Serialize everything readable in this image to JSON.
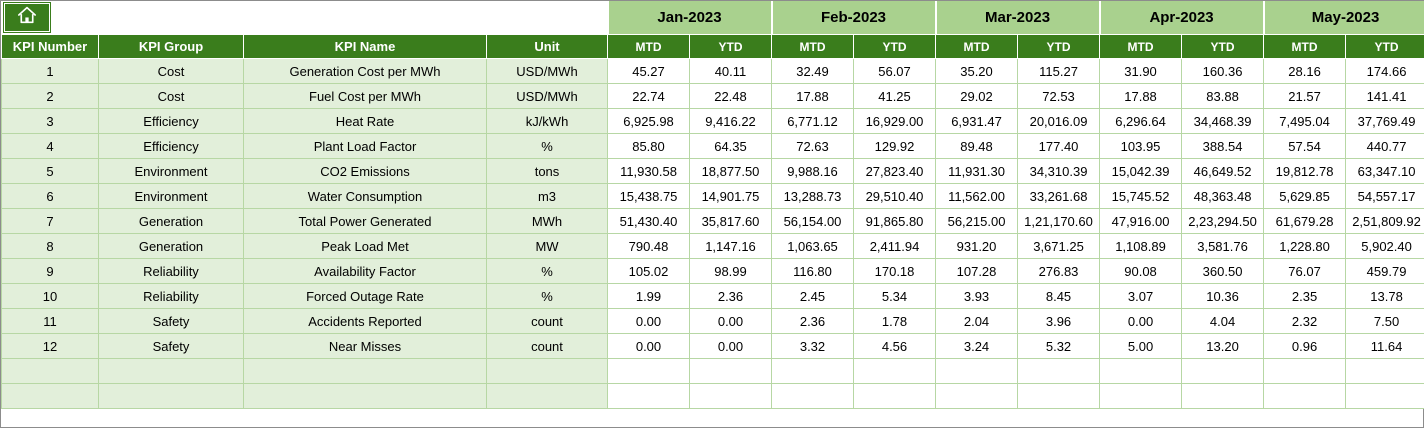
{
  "chart_data": {
    "type": "table",
    "corner": {
      "icon": "home-icon"
    },
    "month_groups": [
      "Jan-2023",
      "Feb-2023",
      "Mar-2023",
      "Apr-2023",
      "May-2023"
    ],
    "sub_columns": [
      "MTD",
      "YTD"
    ],
    "left_columns": [
      "KPI Number",
      "KPI Group",
      "KPI Name",
      "Unit"
    ],
    "rows": [
      {
        "kpi_number": "1",
        "kpi_group": "Cost",
        "kpi_name": "Generation Cost per MWh",
        "unit": "USD/MWh",
        "values": [
          "45.27",
          "40.11",
          "32.49",
          "56.07",
          "35.20",
          "115.27",
          "31.90",
          "160.36",
          "28.16",
          "174.66"
        ]
      },
      {
        "kpi_number": "2",
        "kpi_group": "Cost",
        "kpi_name": "Fuel Cost per MWh",
        "unit": "USD/MWh",
        "values": [
          "22.74",
          "22.48",
          "17.88",
          "41.25",
          "29.02",
          "72.53",
          "17.88",
          "83.88",
          "21.57",
          "141.41"
        ]
      },
      {
        "kpi_number": "3",
        "kpi_group": "Efficiency",
        "kpi_name": "Heat Rate",
        "unit": "kJ/kWh",
        "values": [
          "6,925.98",
          "9,416.22",
          "6,771.12",
          "16,929.00",
          "6,931.47",
          "20,016.09",
          "6,296.64",
          "34,468.39",
          "7,495.04",
          "37,769.49"
        ]
      },
      {
        "kpi_number": "4",
        "kpi_group": "Efficiency",
        "kpi_name": "Plant Load Factor",
        "unit": "%",
        "values": [
          "85.80",
          "64.35",
          "72.63",
          "129.92",
          "89.48",
          "177.40",
          "103.95",
          "388.54",
          "57.54",
          "440.77"
        ]
      },
      {
        "kpi_number": "5",
        "kpi_group": "Environment",
        "kpi_name": "CO2 Emissions",
        "unit": "tons",
        "values": [
          "11,930.58",
          "18,877.50",
          "9,988.16",
          "27,823.40",
          "11,931.30",
          "34,310.39",
          "15,042.39",
          "46,649.52",
          "19,812.78",
          "63,347.10"
        ]
      },
      {
        "kpi_number": "6",
        "kpi_group": "Environment",
        "kpi_name": "Water Consumption",
        "unit": "m3",
        "values": [
          "15,438.75",
          "14,901.75",
          "13,288.73",
          "29,510.40",
          "11,562.00",
          "33,261.68",
          "15,745.52",
          "48,363.48",
          "5,629.85",
          "54,557.17"
        ]
      },
      {
        "kpi_number": "7",
        "kpi_group": "Generation",
        "kpi_name": "Total Power Generated",
        "unit": "MWh",
        "values": [
          "51,430.40",
          "35,817.60",
          "56,154.00",
          "91,865.80",
          "56,215.00",
          "1,21,170.60",
          "47,916.00",
          "2,23,294.50",
          "61,679.28",
          "2,51,809.92"
        ]
      },
      {
        "kpi_number": "8",
        "kpi_group": "Generation",
        "kpi_name": "Peak Load Met",
        "unit": "MW",
        "values": [
          "790.48",
          "1,147.16",
          "1,063.65",
          "2,411.94",
          "931.20",
          "3,671.25",
          "1,108.89",
          "3,581.76",
          "1,228.80",
          "5,902.40"
        ]
      },
      {
        "kpi_number": "9",
        "kpi_group": "Reliability",
        "kpi_name": "Availability Factor",
        "unit": "%",
        "values": [
          "105.02",
          "98.99",
          "116.80",
          "170.18",
          "107.28",
          "276.83",
          "90.08",
          "360.50",
          "76.07",
          "459.79"
        ]
      },
      {
        "kpi_number": "10",
        "kpi_group": "Reliability",
        "kpi_name": "Forced Outage Rate",
        "unit": "%",
        "values": [
          "1.99",
          "2.36",
          "2.45",
          "5.34",
          "3.93",
          "8.45",
          "3.07",
          "10.36",
          "2.35",
          "13.78"
        ]
      },
      {
        "kpi_number": "11",
        "kpi_group": "Safety",
        "kpi_name": "Accidents Reported",
        "unit": "count",
        "values": [
          "0.00",
          "0.00",
          "2.36",
          "1.78",
          "2.04",
          "3.96",
          "0.00",
          "4.04",
          "2.32",
          "7.50"
        ]
      },
      {
        "kpi_number": "12",
        "kpi_group": "Safety",
        "kpi_name": "Near Misses",
        "unit": "count",
        "values": [
          "0.00",
          "0.00",
          "3.32",
          "4.56",
          "3.24",
          "5.32",
          "5.00",
          "13.20",
          "0.96",
          "11.64"
        ]
      }
    ],
    "empty_row_count": 2,
    "colors": {
      "header_dark_green": "#3a7d1c",
      "month_header_green": "#a9d18e",
      "left_cell_green": "#e2efda",
      "gridline_green": "#b7d7a4"
    }
  }
}
